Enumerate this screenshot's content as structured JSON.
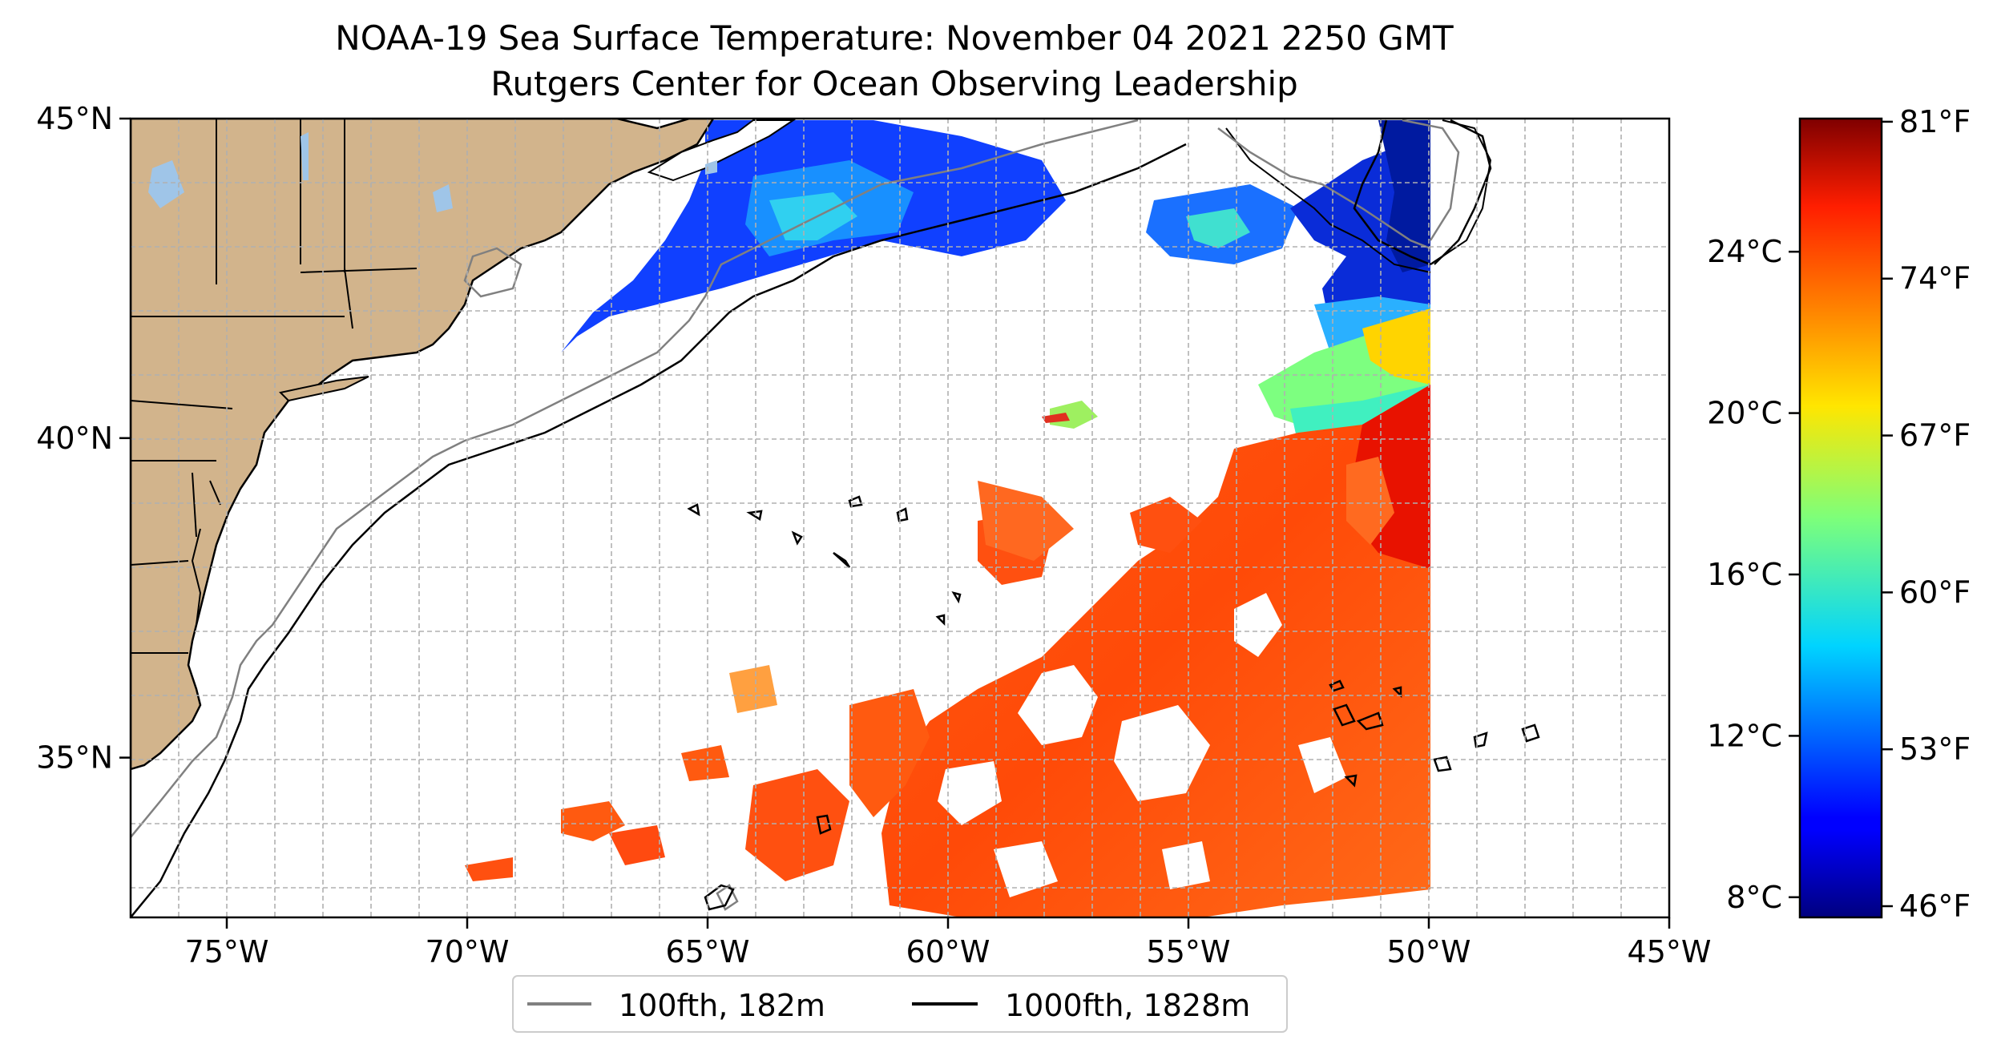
{
  "title": {
    "line1": "NOAA-19 Sea Surface Temperature: November 04 2021 2250 GMT",
    "line2": "Rutgers Center for Ocean Observing Leadership"
  },
  "map": {
    "lon_range": [
      -77,
      -45
    ],
    "lat_range": [
      32.5,
      45
    ],
    "x_ticks": [
      {
        "lon": -75,
        "label": "75°W"
      },
      {
        "lon": -70,
        "label": "70°W"
      },
      {
        "lon": -65,
        "label": "65°W"
      },
      {
        "lon": -60,
        "label": "60°W"
      },
      {
        "lon": -55,
        "label": "55°W"
      },
      {
        "lon": -50,
        "label": "50°W"
      },
      {
        "lon": -45,
        "label": "45°W"
      }
    ],
    "y_ticks": [
      {
        "lat": 45,
        "label": "45°N"
      },
      {
        "lat": 40,
        "label": "40°N"
      },
      {
        "lat": 35,
        "label": "35°N"
      }
    ],
    "colors": {
      "land": "#d2b48c",
      "ocean_no_data": "#ffffff",
      "grid": "#b0b0b0",
      "isobath_100fth": "#808080",
      "isobath_1000fth": "#000000"
    }
  },
  "legend": {
    "placement": "bottom-center, below map",
    "items": [
      {
        "label": "100fth, 182m",
        "color": "#808080"
      },
      {
        "label": "1000fth, 1828m",
        "color": "#000000"
      }
    ]
  },
  "colorbar": {
    "colormap": "jet",
    "range_c": [
      7.5,
      27.3
    ],
    "celsius_ticks": [
      {
        "value": 8,
        "label": "8°C"
      },
      {
        "value": 12,
        "label": "12°C"
      },
      {
        "value": 16,
        "label": "16°C"
      },
      {
        "value": 20,
        "label": "20°C"
      },
      {
        "value": 24,
        "label": "24°C"
      }
    ],
    "fahrenheit_ticks": [
      {
        "value": 46,
        "label": "46°F"
      },
      {
        "value": 53,
        "label": "53°F"
      },
      {
        "value": 60,
        "label": "60°F"
      },
      {
        "value": 67,
        "label": "67°F"
      },
      {
        "value": 74,
        "label": "74°F"
      },
      {
        "value": 81,
        "label": "81°F"
      }
    ]
  }
}
